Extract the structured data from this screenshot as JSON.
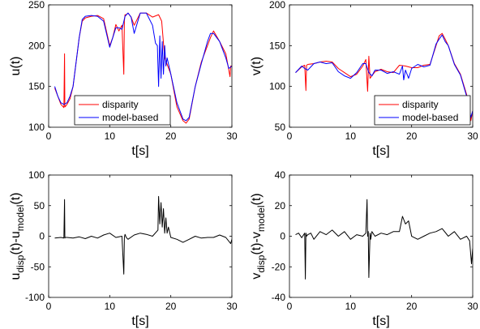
{
  "chart_data": [
    {
      "type": "line",
      "xlabel": "t[s]",
      "ylabel": "u(t)",
      "xlim": [
        0,
        30
      ],
      "ylim": [
        100,
        250
      ],
      "x_ticks": [
        0,
        10,
        20,
        30
      ],
      "y_ticks": [
        100,
        150,
        200,
        250
      ],
      "legend": "bottom-left",
      "series": [
        {
          "name": "disparity",
          "color": "#ff0000",
          "x": [
            1,
            1.5,
            2,
            2.5,
            2.6,
            2.65,
            2.7,
            3,
            3.5,
            4,
            5,
            5.5,
            6,
            7,
            8,
            9,
            10,
            10.5,
            11,
            11.5,
            12,
            12.3,
            12.4,
            12.5,
            12.7,
            13,
            13.5,
            14,
            15,
            16,
            17,
            18,
            18.5,
            19,
            20,
            21,
            22,
            22.5,
            23,
            24,
            25,
            26,
            26.5,
            27,
            28,
            29,
            29.7,
            29.8,
            30
          ],
          "values": [
            148,
            138,
            128,
            124,
            190,
            125,
            125,
            128,
            135,
            150,
            210,
            230,
            234,
            236,
            237,
            233,
            200,
            210,
            226,
            218,
            225,
            165,
            230,
            238,
            238,
            240,
            235,
            225,
            240,
            240,
            235,
            238,
            230,
            185,
            165,
            125,
            108,
            105,
            110,
            150,
            180,
            200,
            210,
            218,
            205,
            190,
            162,
            175,
            175
          ]
        },
        {
          "name": "model-based",
          "color": "#0000ff",
          "x": [
            1,
            1.5,
            2,
            2.5,
            3,
            3.5,
            4,
            5,
            5.5,
            6,
            7,
            8,
            9,
            10,
            10.5,
            11,
            11.5,
            12,
            12.5,
            13,
            13.5,
            14,
            15,
            16,
            17,
            17.5,
            17.8,
            18,
            18.2,
            18.4,
            18.6,
            18.8,
            19,
            19.2,
            19.4,
            20,
            21,
            22,
            22.5,
            23,
            24,
            25,
            26,
            26.5,
            27,
            28,
            29,
            29.5,
            30
          ],
          "values": [
            150,
            138,
            130,
            128,
            130,
            138,
            150,
            210,
            232,
            236,
            237,
            236,
            230,
            198,
            210,
            222,
            222,
            220,
            236,
            240,
            235,
            215,
            240,
            240,
            225,
            203,
            200,
            150,
            212,
            160,
            205,
            165,
            200,
            175,
            185,
            165,
            130,
            110,
            108,
            112,
            150,
            178,
            205,
            215,
            215,
            205,
            185,
            172,
            175
          ]
        }
      ]
    },
    {
      "type": "line",
      "xlabel": "t[s]",
      "ylabel": "v(t)",
      "xlim": [
        0,
        30
      ],
      "ylim": [
        50,
        200
      ],
      "x_ticks": [
        0,
        10,
        20,
        30
      ],
      "y_ticks": [
        50,
        100,
        150,
        200
      ],
      "legend": "bottom-right",
      "series": [
        {
          "name": "disparity",
          "color": "#ff0000",
          "x": [
            1,
            2,
            2.5,
            2.7,
            2.8,
            3,
            4,
            5,
            6,
            7,
            8,
            9,
            10,
            11,
            12,
            12.5,
            12.8,
            13,
            13.2,
            13.5,
            14,
            15,
            16,
            17,
            18,
            19,
            20,
            21,
            22,
            23,
            24,
            24.5,
            25,
            25.5,
            26,
            27,
            28,
            29,
            29.5,
            29.7,
            30
          ],
          "values": [
            117,
            124,
            126,
            95,
            126,
            127,
            128,
            130,
            131,
            130,
            122,
            117,
            112,
            115,
            125,
            133,
            94,
            137,
            110,
            113,
            118,
            121,
            118,
            117,
            126,
            125,
            123,
            123,
            126,
            127,
            150,
            162,
            165,
            158,
            150,
            128,
            115,
            90,
            70,
            58,
            70
          ]
        },
        {
          "name": "model-based",
          "color": "#0000ff",
          "x": [
            1,
            2,
            2.5,
            3,
            4,
            5,
            6,
            7,
            8,
            9,
            10,
            11,
            12,
            12.5,
            13,
            13.5,
            14,
            15,
            16,
            17,
            18,
            18.5,
            18.7,
            19,
            19.5,
            20,
            21,
            22,
            23,
            24,
            24.5,
            25,
            25.5,
            26,
            27,
            28,
            29,
            29.5,
            29.7,
            30
          ],
          "values": [
            117,
            125,
            122,
            120,
            128,
            130,
            128,
            129,
            118,
            113,
            110,
            117,
            128,
            128,
            117,
            113,
            120,
            120,
            116,
            118,
            115,
            125,
            108,
            120,
            110,
            122,
            127,
            124,
            126,
            152,
            158,
            163,
            155,
            150,
            127,
            114,
            88,
            70,
            62,
            70
          ]
        }
      ]
    },
    {
      "type": "line",
      "xlabel": "t[s]",
      "ylabel": "u_disp(t)-u_model(t)",
      "ylabel_parts": [
        "u",
        "disp",
        "(t)-u",
        "model",
        "(t)"
      ],
      "xlim": [
        0,
        30
      ],
      "ylim": [
        -100,
        100
      ],
      "x_ticks": [
        0,
        10,
        20,
        30
      ],
      "y_ticks": [
        -100,
        -50,
        0,
        50,
        100
      ],
      "series": [
        {
          "color": "#000000",
          "x": [
            1,
            2,
            2.5,
            2.6,
            2.65,
            2.7,
            3,
            4,
            5,
            6,
            7,
            8,
            9,
            10,
            11,
            12,
            12.3,
            12.4,
            12.5,
            12.7,
            13,
            14,
            15,
            16,
            17,
            17.9,
            18,
            18.2,
            18.4,
            18.6,
            18.8,
            19,
            19.2,
            19.4,
            19.6,
            20,
            21,
            22,
            23,
            24,
            25,
            26,
            27,
            28,
            29,
            29.8,
            30
          ],
          "values": [
            -3,
            -2,
            -3,
            60,
            -3,
            -2,
            -2,
            -3,
            -1,
            -4,
            0,
            -3,
            2,
            5,
            -2,
            0,
            -62,
            -2,
            3,
            -2,
            -5,
            2,
            5,
            3,
            0,
            10,
            65,
            20,
            55,
            15,
            45,
            5,
            30,
            5,
            15,
            -2,
            -5,
            -10,
            -5,
            0,
            -3,
            -2,
            -2,
            2,
            -2,
            -12,
            -5
          ]
        }
      ]
    },
    {
      "type": "line",
      "xlabel": "t[s]",
      "ylabel": "v_disp(t)-v_model(t)",
      "ylabel_parts": [
        "v",
        "disp",
        "(t)-v",
        "model",
        "(t)"
      ],
      "xlim": [
        0,
        30
      ],
      "ylim": [
        -40,
        40
      ],
      "x_ticks": [
        0,
        10,
        20,
        30
      ],
      "y_ticks": [
        -40,
        -20,
        0,
        20,
        40
      ],
      "series": [
        {
          "color": "#000000",
          "x": [
            1,
            1.5,
            2,
            2.5,
            2.6,
            2.7,
            2.8,
            3,
            3.5,
            4,
            5,
            6,
            7,
            8,
            9,
            10,
            11,
            12,
            12.5,
            12.7,
            12.8,
            12.9,
            13,
            13.2,
            13.3,
            13.5,
            14,
            15,
            16,
            17,
            18,
            18.5,
            19,
            19.5,
            20,
            21,
            22,
            23,
            24,
            25,
            26,
            27,
            28,
            29,
            29.5,
            29.8,
            30
          ],
          "values": [
            1,
            2,
            -1,
            2,
            -28,
            2,
            0,
            1,
            2,
            -2,
            3,
            1,
            4,
            0,
            3,
            -2,
            1,
            0,
            2,
            24,
            0,
            3,
            -27,
            2,
            -2,
            3,
            0,
            2,
            1,
            3,
            3,
            13,
            8,
            10,
            0,
            -2,
            0,
            2,
            3,
            5,
            0,
            3,
            -2,
            0,
            -3,
            -18,
            -8
          ]
        }
      ]
    }
  ]
}
